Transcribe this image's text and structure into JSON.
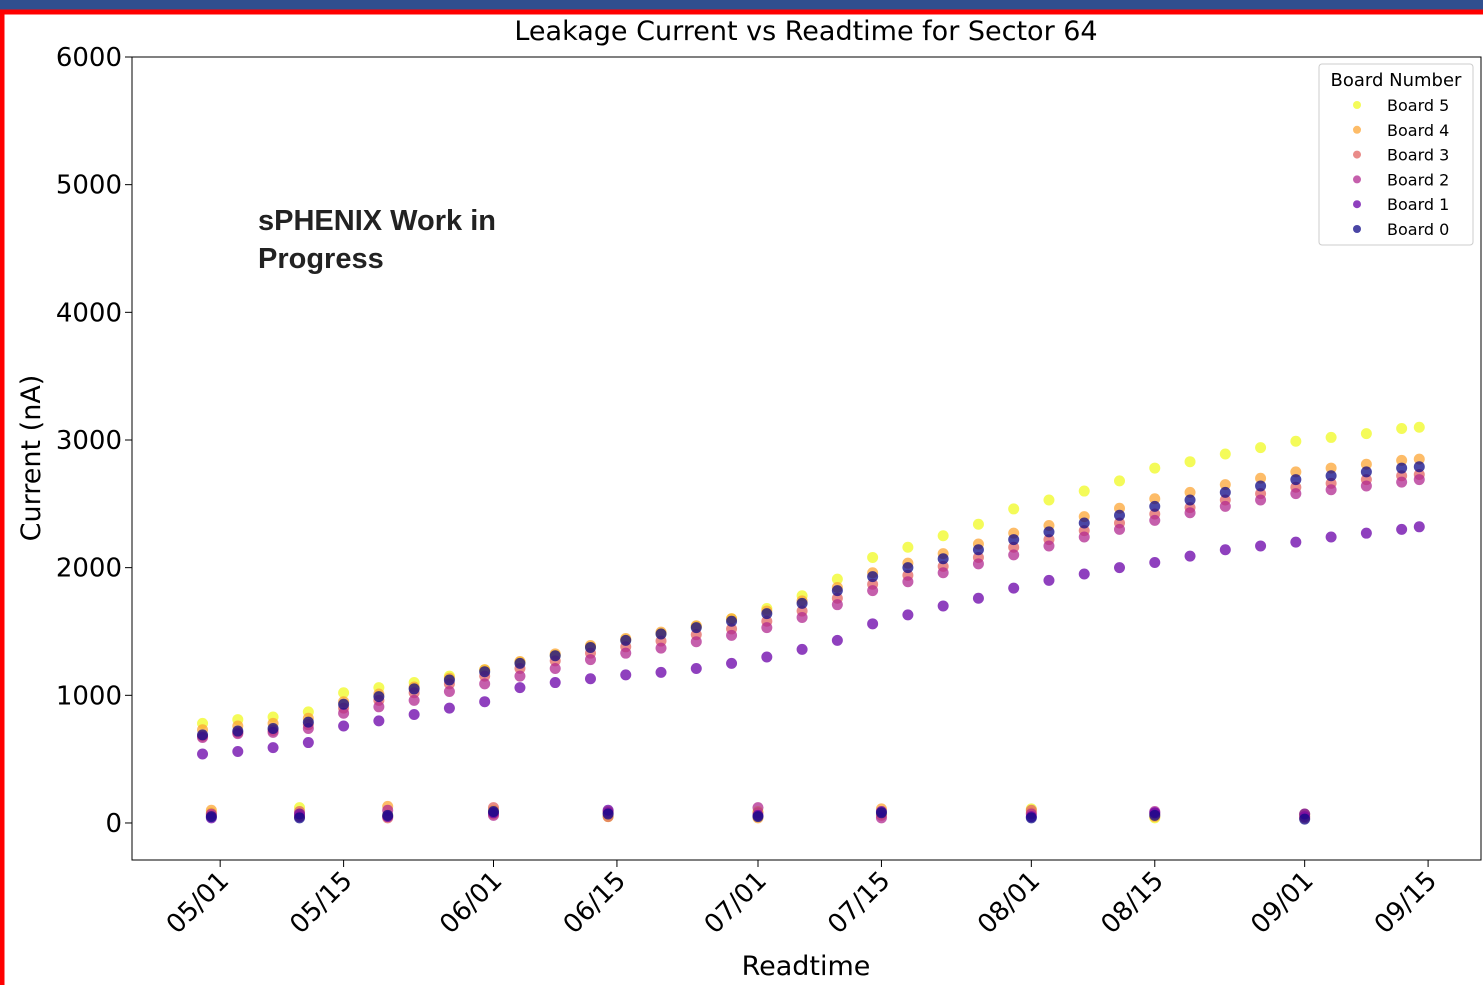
{
  "chart_data": {
    "type": "scatter",
    "title": "Leakage Current vs Readtime for Sector 64",
    "x_label": "Readtime",
    "y_label": "Current (nA)",
    "annotation": "sPHENIX Work in Progress",
    "legend_title": "Board Number",
    "legend": "upper right",
    "xlim": [
      "04/21",
      "09/21"
    ],
    "xticks": [
      "05/01",
      "05/15",
      "06/01",
      "06/15",
      "07/01",
      "07/15",
      "08/01",
      "08/15",
      "09/01",
      "09/15"
    ],
    "ylim": [
      -290,
      6000
    ],
    "yticks": [
      0,
      1000,
      2000,
      3000,
      4000,
      5000,
      6000
    ],
    "x": [
      "04/29",
      "05/03",
      "05/07",
      "05/11",
      "05/15",
      "05/19",
      "05/23",
      "05/27",
      "05/31",
      "06/04",
      "06/08",
      "06/12",
      "06/16",
      "06/20",
      "06/24",
      "06/28",
      "07/02",
      "07/06",
      "07/10",
      "07/14",
      "07/18",
      "07/22",
      "07/26",
      "07/30",
      "08/03",
      "08/07",
      "08/11",
      "08/15",
      "08/19",
      "08/23",
      "08/27",
      "08/31",
      "09/04",
      "09/08",
      "09/12",
      "09/14",
      "04/30",
      "05/10",
      "05/20",
      "06/01",
      "06/14",
      "07/01",
      "07/15",
      "08/01",
      "08/15",
      "09/01"
    ],
    "series": [
      {
        "name": "Board 5",
        "color": "#f0f921",
        "values": [
          780,
          810,
          830,
          870,
          1020,
          1060,
          1100,
          1150,
          1200,
          1260,
          1315,
          1380,
          1435,
          1485,
          1540,
          1600,
          1680,
          1780,
          1910,
          2080,
          2160,
          2250,
          2340,
          2460,
          2530,
          2600,
          2680,
          2780,
          2830,
          2890,
          2940,
          2990,
          3020,
          3050,
          3090,
          3100,
          80,
          120,
          60,
          100,
          50,
          90,
          70,
          110,
          40,
          60
        ]
      },
      {
        "name": "Board 4",
        "color": "#fca636",
        "values": [
          730,
          760,
          780,
          820,
          950,
          1010,
          1065,
          1135,
          1200,
          1265,
          1325,
          1390,
          1445,
          1495,
          1545,
          1600,
          1660,
          1740,
          1845,
          1960,
          2035,
          2110,
          2185,
          2270,
          2330,
          2400,
          2465,
          2540,
          2590,
          2650,
          2700,
          2750,
          2780,
          2810,
          2840,
          2850,
          100,
          60,
          130,
          70,
          90,
          40,
          110,
          80,
          50,
          70
        ]
      },
      {
        "name": "Board 3",
        "color": "#e16462",
        "values": [
          680,
          710,
          725,
          770,
          900,
          960,
          1020,
          1090,
          1150,
          1210,
          1270,
          1330,
          1380,
          1425,
          1475,
          1520,
          1580,
          1660,
          1760,
          1870,
          1940,
          2010,
          2080,
          2160,
          2220,
          2290,
          2350,
          2420,
          2470,
          2530,
          2580,
          2630,
          2660,
          2690,
          2720,
          2730,
          60,
          90,
          40,
          120,
          50,
          80,
          60,
          100,
          70,
          40
        ]
      },
      {
        "name": "Board 2",
        "color": "#b12a90",
        "values": [
          670,
          700,
          710,
          740,
          860,
          910,
          960,
          1030,
          1090,
          1150,
          1210,
          1280,
          1330,
          1370,
          1420,
          1470,
          1530,
          1610,
          1710,
          1820,
          1890,
          1960,
          2030,
          2100,
          2170,
          2240,
          2300,
          2370,
          2430,
          2480,
          2530,
          2580,
          2610,
          2640,
          2670,
          2690,
          70,
          50,
          100,
          60,
          80,
          120,
          40,
          70,
          90,
          50
        ]
      },
      {
        "name": "Board 1",
        "color": "#6a00a8",
        "values": [
          540,
          560,
          590,
          630,
          760,
          800,
          850,
          900,
          950,
          1060,
          1100,
          1130,
          1160,
          1180,
          1210,
          1250,
          1300,
          1360,
          1430,
          1560,
          1630,
          1700,
          1760,
          1840,
          1900,
          1950,
          2000,
          2040,
          2090,
          2140,
          2170,
          2200,
          2240,
          2270,
          2300,
          2320,
          40,
          70,
          50,
          80,
          100,
          60,
          90,
          50,
          80,
          70
        ]
      },
      {
        "name": "Board 0",
        "color": "#0d0887",
        "values": [
          690,
          720,
          740,
          790,
          930,
          990,
          1050,
          1120,
          1185,
          1250,
          1310,
          1375,
          1430,
          1480,
          1530,
          1580,
          1640,
          1720,
          1820,
          1930,
          2000,
          2070,
          2140,
          2220,
          2280,
          2350,
          2410,
          2480,
          2530,
          2590,
          2640,
          2690,
          2720,
          2750,
          2780,
          2790,
          50,
          40,
          60,
          90,
          70,
          50,
          80,
          40,
          60,
          30
        ]
      }
    ]
  }
}
